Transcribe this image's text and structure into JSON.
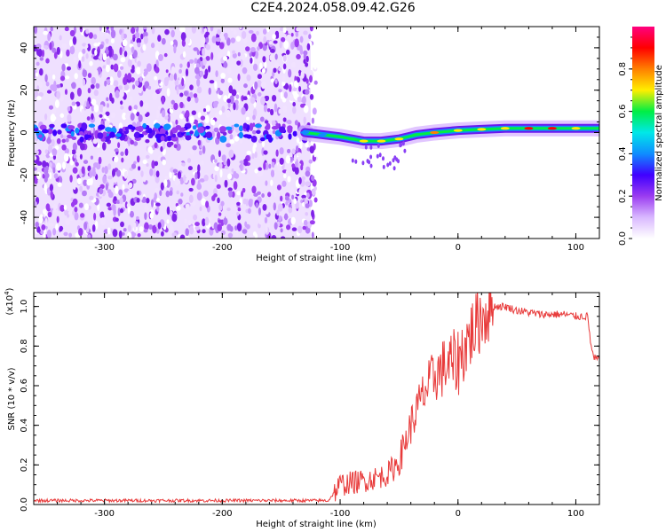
{
  "title": "C2E4.2024.058.09.42.G26",
  "colors": {
    "snr_line": "#e83a3a",
    "axis": "#000000",
    "colorbar": [
      "#ffffff",
      "#d9b8ff",
      "#9b3cf0",
      "#3f00ff",
      "#0f8dff",
      "#00e8e8",
      "#00ee44",
      "#ffee00",
      "#ff7f00",
      "#ff0000",
      "#ff007f"
    ]
  },
  "chart_data": [
    {
      "type": "heatmap",
      "xlabel": "Height of straight line (km)",
      "ylabel": "Frequency (Hz)",
      "xlim": [
        -360,
        120
      ],
      "ylim": [
        -50,
        50
      ],
      "xticks": [
        -300,
        -200,
        -100,
        0,
        100
      ],
      "xtick_labels": [
        "-300",
        "-200",
        "-100",
        "0",
        "100"
      ],
      "yticks": [
        -40,
        -20,
        0,
        20,
        40
      ],
      "ytick_labels": [
        "-40",
        "-20",
        "0",
        "20",
        "40"
      ],
      "noise_region_x": [
        -360,
        -125
      ],
      "signal_band": [
        {
          "x": -130,
          "f": 0,
          "amp": 0.35
        },
        {
          "x": -115,
          "f": -1,
          "amp": 0.4
        },
        {
          "x": -100,
          "f": -2,
          "amp": 0.55
        },
        {
          "x": -90,
          "f": -3,
          "amp": 0.6
        },
        {
          "x": -80,
          "f": -4,
          "amp": 0.65
        },
        {
          "x": -65,
          "f": -4,
          "amp": 0.7
        },
        {
          "x": -50,
          "f": -3,
          "amp": 0.65
        },
        {
          "x": -35,
          "f": -1,
          "amp": 0.6
        },
        {
          "x": -20,
          "f": 0,
          "amp": 0.75
        },
        {
          "x": 0,
          "f": 1,
          "amp": 0.7
        },
        {
          "x": 20,
          "f": 1.5,
          "amp": 0.65
        },
        {
          "x": 40,
          "f": 2,
          "amp": 0.7
        },
        {
          "x": 60,
          "f": 2,
          "amp": 0.85
        },
        {
          "x": 80,
          "f": 2,
          "amp": 0.9
        },
        {
          "x": 100,
          "f": 2,
          "amp": 0.7
        },
        {
          "x": 120,
          "f": 2,
          "amp": 0.6
        }
      ],
      "colorbar": {
        "label": "Normalized spectral amplitude",
        "range": [
          0,
          1
        ],
        "ticks": [
          0.0,
          0.2,
          0.4,
          0.6,
          0.8
        ],
        "tick_labels": [
          "0.0",
          "0.2",
          "0.4",
          "0.6",
          "0.8"
        ]
      }
    },
    {
      "type": "line",
      "xlabel": "Height of straight line (km)",
      "ylabel": "SNR (10 * v/v)",
      "multiplier_label": "(x10",
      "multiplier_exp": "4",
      "multiplier_close": ")",
      "xlim": [
        -360,
        120
      ],
      "ylim": [
        0,
        1.07
      ],
      "xticks": [
        -300,
        -200,
        -100,
        0,
        100
      ],
      "xtick_labels": [
        "-300",
        "-200",
        "-100",
        "0",
        "100"
      ],
      "yticks": [
        0.0,
        0.2,
        0.4,
        0.6,
        0.8,
        1.0
      ],
      "ytick_labels": [
        "0.0",
        "0.2",
        "0.4",
        "0.6",
        "0.8",
        "1.0"
      ],
      "series": [
        {
          "x": [
            -360,
            -300,
            -200,
            -110,
            -100,
            -80,
            -60,
            -50,
            -40,
            -30,
            -20,
            -10,
            0,
            10,
            20,
            30,
            40,
            50,
            60,
            70,
            80,
            90,
            100,
            110,
            113,
            115,
            120
          ],
          "y": [
            0.02,
            0.02,
            0.02,
            0.02,
            0.1,
            0.12,
            0.15,
            0.22,
            0.4,
            0.55,
            0.65,
            0.7,
            0.72,
            0.85,
            0.95,
            1.0,
            1.0,
            0.98,
            0.97,
            0.96,
            0.96,
            0.96,
            0.95,
            0.95,
            0.8,
            0.74,
            0.73
          ]
        }
      ]
    }
  ]
}
